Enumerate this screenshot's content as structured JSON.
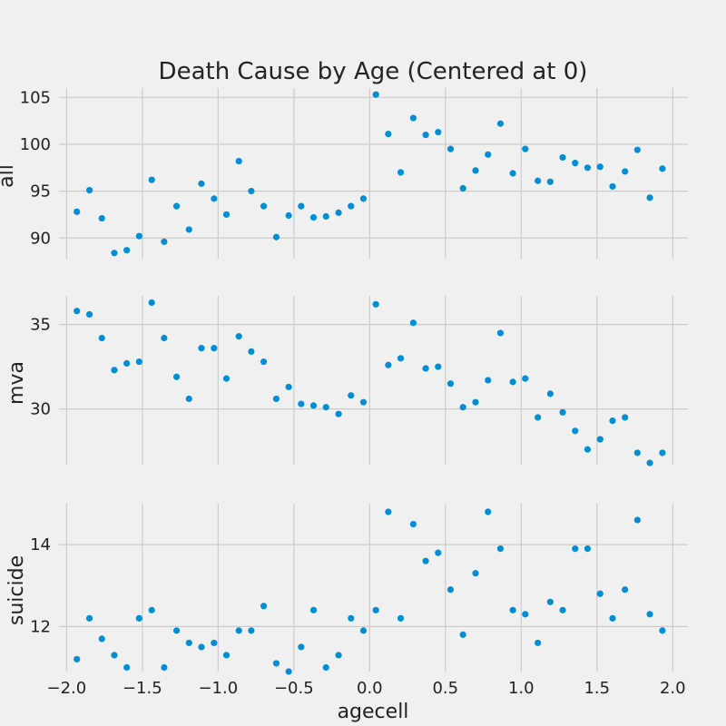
{
  "chart_data": {
    "type": "scatter",
    "title": "Death Cause by Age (Centered at 0)",
    "xlabel": "agecell",
    "xlim": [
      -2.05,
      2.1
    ],
    "x_ticks": [
      -2.0,
      -1.5,
      -1.0,
      -0.5,
      0.0,
      0.5,
      1.0,
      1.5,
      2.0
    ],
    "x_tick_labels": [
      "−2.0",
      "−1.5",
      "−1.0",
      "−0.5",
      "0.0",
      "0.5",
      "1.0",
      "1.5",
      "2.0"
    ],
    "grid": true,
    "x": [
      -1.932,
      -1.849,
      -1.767,
      -1.685,
      -1.603,
      -1.521,
      -1.438,
      -1.356,
      -1.274,
      -1.192,
      -1.11,
      -1.027,
      -0.945,
      -0.863,
      -0.781,
      -0.699,
      -0.616,
      -0.534,
      -0.452,
      -0.37,
      -0.288,
      -0.205,
      -0.123,
      -0.041,
      0.041,
      0.123,
      0.205,
      0.288,
      0.37,
      0.452,
      0.534,
      0.616,
      0.699,
      0.781,
      0.863,
      0.945,
      1.027,
      1.11,
      1.192,
      1.274,
      1.356,
      1.438,
      1.521,
      1.603,
      1.685,
      1.767,
      1.849,
      1.932
    ],
    "series": [
      {
        "ylabel": "all",
        "ylim": [
          87.8,
          106.0
        ],
        "y_ticks": [
          90,
          95,
          100,
          105
        ],
        "y_tick_labels": [
          "90",
          "95",
          "100",
          "105"
        ],
        "values": [
          92.8,
          95.1,
          92.1,
          88.4,
          88.7,
          90.2,
          96.2,
          89.6,
          93.4,
          90.9,
          95.8,
          94.2,
          92.5,
          98.2,
          95.0,
          93.4,
          90.1,
          92.4,
          93.4,
          92.2,
          92.3,
          92.7,
          93.4,
          94.2,
          105.3,
          101.1,
          97.0,
          102.8,
          101.0,
          101.3,
          99.5,
          95.3,
          97.2,
          98.9,
          102.2,
          96.9,
          99.5,
          96.1,
          96.0,
          98.6,
          98.0,
          97.5,
          97.6,
          95.5,
          97.1,
          99.4,
          94.3,
          97.4
        ]
      },
      {
        "ylabel": "mva",
        "ylim": [
          26.7,
          36.7
        ],
        "y_ticks": [
          30,
          35
        ],
        "y_tick_labels": [
          "30",
          "35"
        ],
        "values": [
          35.8,
          35.6,
          34.2,
          32.3,
          32.7,
          32.8,
          36.3,
          34.2,
          31.9,
          30.6,
          33.6,
          33.6,
          31.8,
          34.3,
          33.4,
          32.8,
          30.6,
          31.3,
          30.3,
          30.2,
          30.1,
          29.7,
          30.8,
          30.4,
          36.2,
          32.6,
          33.0,
          35.1,
          32.4,
          32.5,
          31.5,
          30.1,
          30.4,
          31.7,
          34.5,
          31.6,
          31.8,
          29.5,
          30.9,
          29.8,
          28.7,
          27.6,
          28.2,
          29.3,
          29.5,
          27.4,
          26.8,
          27.4
        ]
      },
      {
        "ylabel": "suicide",
        "ylim": [
          10.9,
          15.0
        ],
        "y_ticks": [
          12,
          14
        ],
        "y_tick_labels": [
          "12",
          "14"
        ],
        "values": [
          11.2,
          12.2,
          11.7,
          11.3,
          11.0,
          12.2,
          12.4,
          11.0,
          11.9,
          11.6,
          11.5,
          11.6,
          11.3,
          11.9,
          11.9,
          12.5,
          11.1,
          10.9,
          11.5,
          12.4,
          11.0,
          11.3,
          12.2,
          11.9,
          12.4,
          14.8,
          12.2,
          14.5,
          13.6,
          13.8,
          12.9,
          11.8,
          13.3,
          14.8,
          13.9,
          12.4,
          12.3,
          11.6,
          12.6,
          12.4,
          13.9,
          13.9,
          12.8,
          12.2,
          12.9,
          14.6,
          12.3,
          11.9
        ]
      }
    ]
  },
  "colors": {
    "point": "#008fd5",
    "background": "#f0f0f0",
    "grid": "#cbcbcb"
  }
}
